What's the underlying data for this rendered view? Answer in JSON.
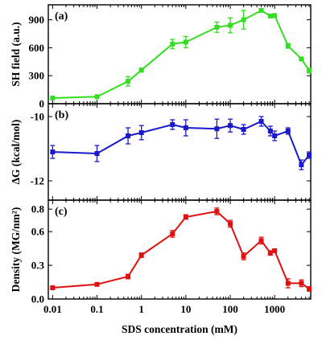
{
  "chart_data": [
    {
      "type": "line",
      "panel_label": "(a)",
      "ylabel": "SH field (a.u.)",
      "xscale": "log",
      "xlim": [
        0.008,
        6500
      ],
      "ylim": [
        0,
        1060
      ],
      "yticks": [
        0,
        300,
        600,
        900
      ],
      "color": "#33dd22",
      "marker": "square",
      "x": [
        0.01,
        0.1,
        0.5,
        1,
        5,
        10,
        50,
        100,
        200,
        500,
        800,
        1000,
        2000,
        4000,
        6000
      ],
      "y": [
        60,
        75,
        240,
        360,
        640,
        660,
        820,
        840,
        900,
        1000,
        940,
        945,
        620,
        480,
        355
      ],
      "err": [
        0,
        0,
        50,
        20,
        50,
        60,
        55,
        80,
        100,
        15,
        0,
        0,
        25,
        15,
        25
      ]
    },
    {
      "type": "line",
      "panel_label": "(b)",
      "ylabel": "ΔG (kcal/mol)",
      "xscale": "log",
      "xlim": [
        0.008,
        6500
      ],
      "ylim": [
        -12.6,
        -9.6
      ],
      "yticks": [
        -12,
        -10
      ],
      "color": "#1a1acc",
      "marker": "square",
      "x": [
        0.01,
        0.1,
        0.5,
        1,
        5,
        10,
        50,
        100,
        200,
        500,
        800,
        1000,
        2000,
        4000,
        6000
      ],
      "y": [
        -11.1,
        -11.15,
        -10.6,
        -10.5,
        -10.25,
        -10.35,
        -10.38,
        -10.28,
        -10.4,
        -10.15,
        -10.45,
        -10.6,
        -10.45,
        -11.5,
        -11.2
      ],
      "err": [
        0.2,
        0.25,
        0.25,
        0.22,
        0.15,
        0.25,
        0.3,
        0.2,
        0.15,
        0.15,
        0.15,
        0.15,
        0.1,
        0.15,
        0.1
      ]
    },
    {
      "type": "line",
      "panel_label": "(c)",
      "ylabel": "Density (MG/nm²)",
      "xlabel": "SDS concentration (mM)",
      "xscale": "log",
      "xlim": [
        0.008,
        6500
      ],
      "ylim": [
        0,
        0.88
      ],
      "yticks": [
        0.0,
        0.3,
        0.6,
        0.8
      ],
      "xticks": [
        0.01,
        0.1,
        1,
        10,
        100,
        1000
      ],
      "xtick_labels": [
        "0.01",
        "0.1",
        "1",
        "10",
        "100",
        "1000"
      ],
      "color": "#e01010",
      "marker": "square",
      "x": [
        0.01,
        0.1,
        0.5,
        1,
        5,
        10,
        50,
        100,
        200,
        500,
        800,
        1000,
        2000,
        4000,
        6000
      ],
      "y": [
        0.1,
        0.13,
        0.2,
        0.39,
        0.58,
        0.73,
        0.78,
        0.67,
        0.38,
        0.52,
        0.41,
        0.43,
        0.14,
        0.14,
        0.09
      ],
      "err": [
        0.01,
        0.01,
        0.02,
        0.02,
        0.03,
        0.02,
        0.03,
        0.03,
        0.03,
        0.03,
        0.02,
        0.01,
        0.04,
        0.03,
        0.02
      ]
    }
  ]
}
